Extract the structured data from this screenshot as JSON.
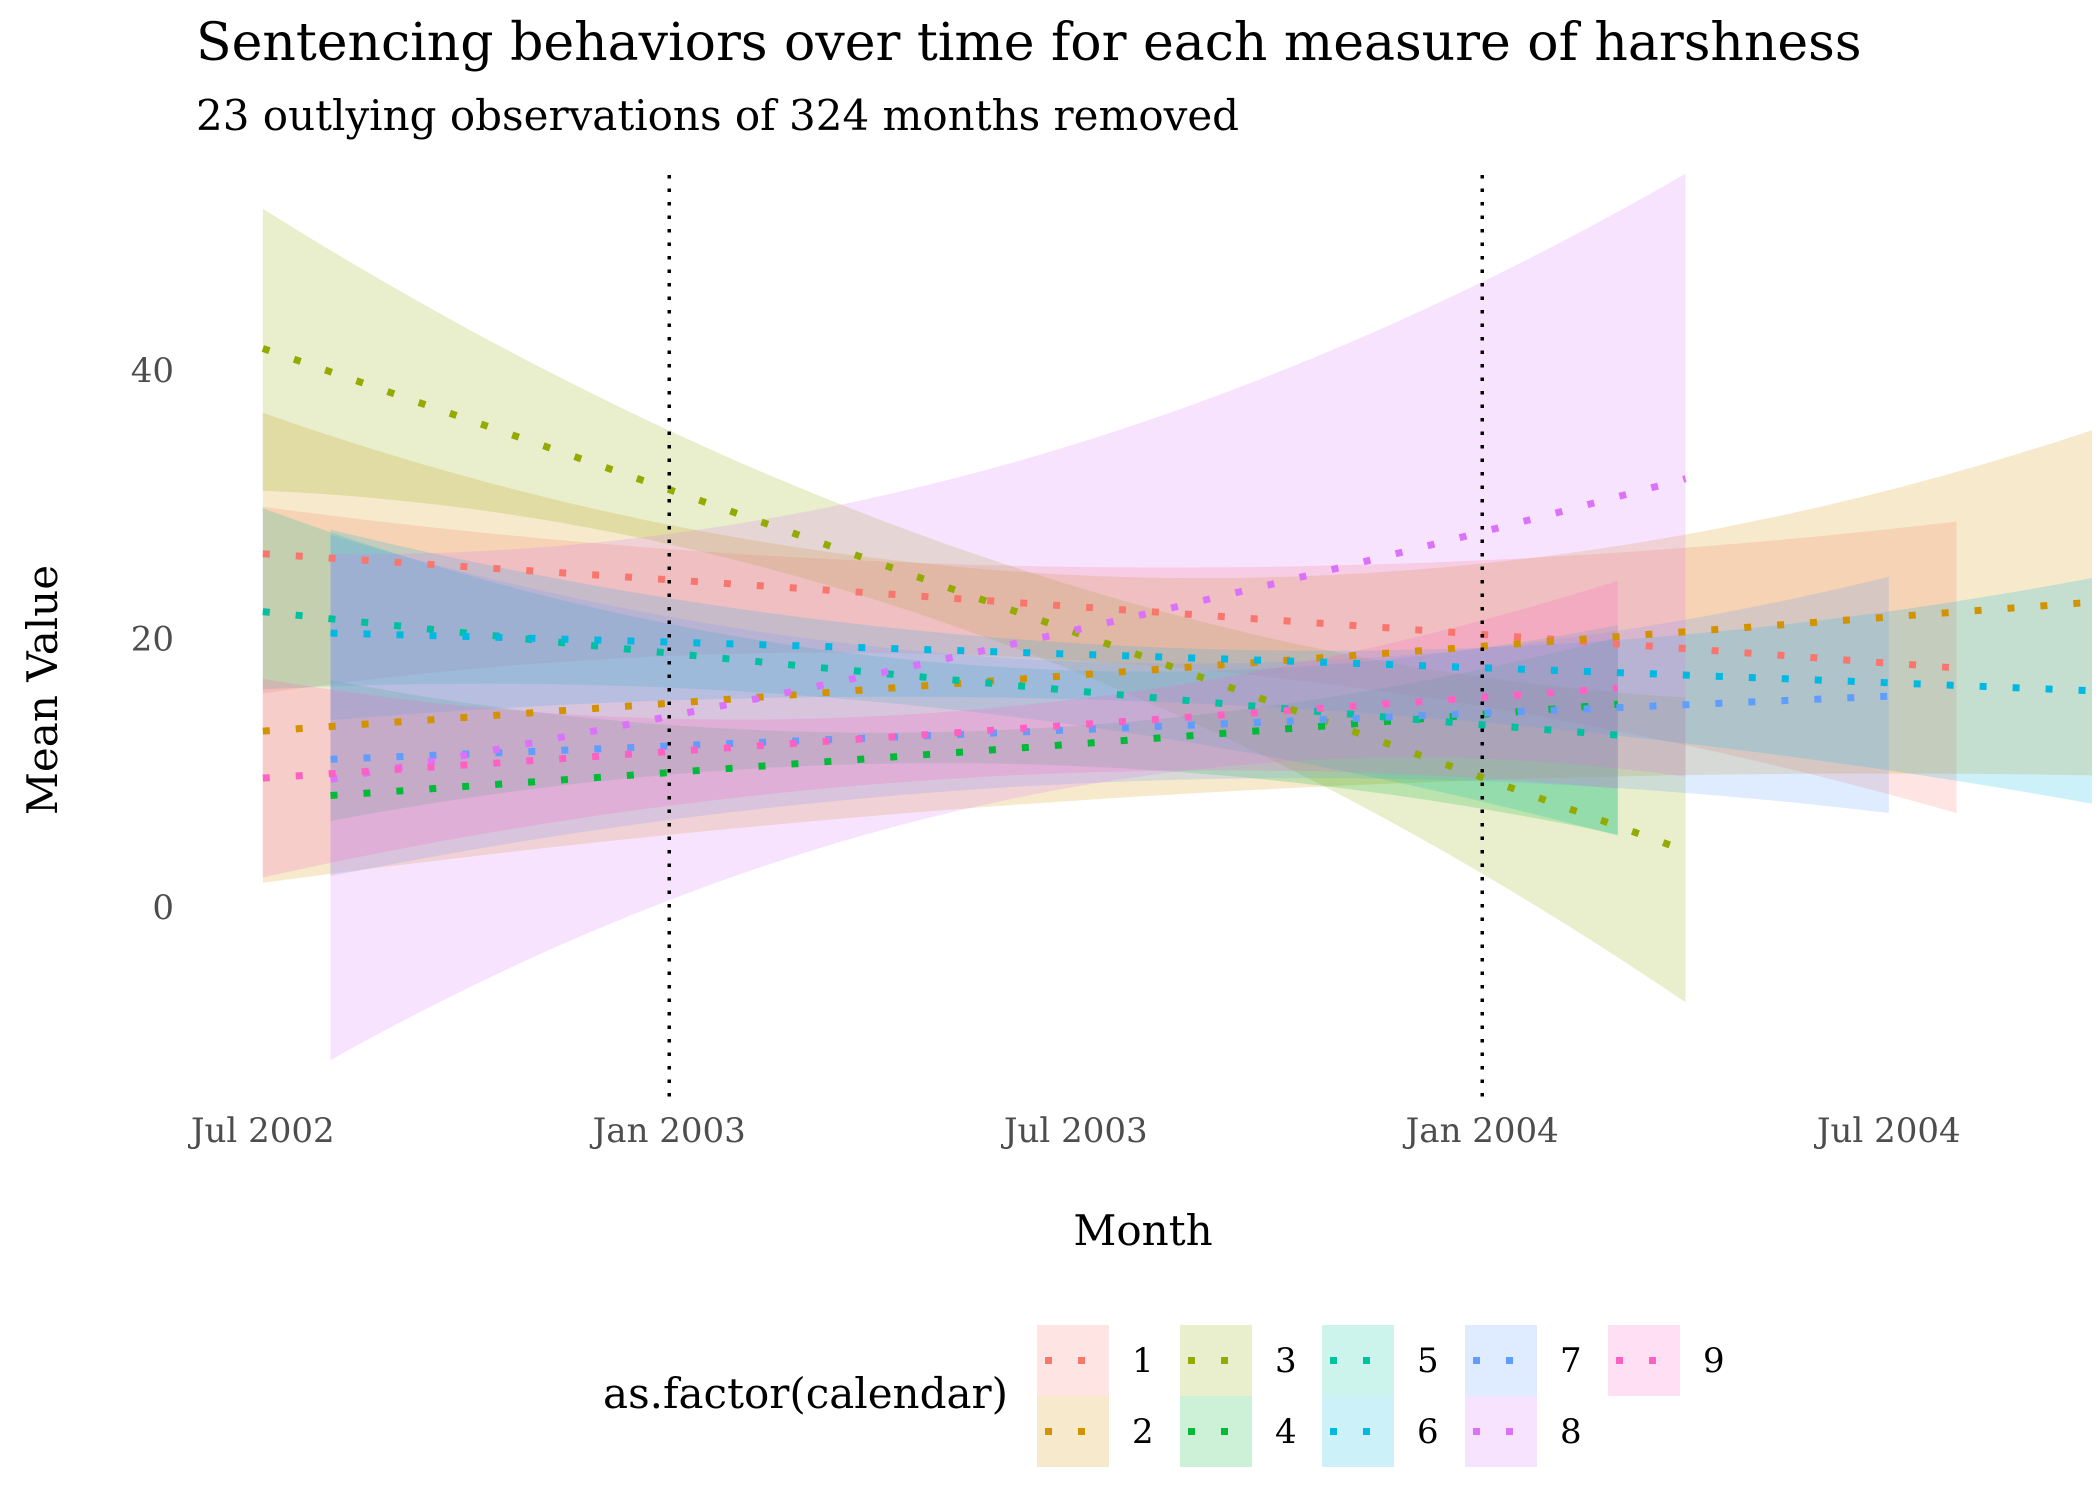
{
  "chart_data": {
    "type": "line",
    "title": "Sentencing behaviors over time for each measure of harshness",
    "subtitle": "23 outlying observations of 324 months removed",
    "xlabel": "Month",
    "ylabel": "Mean Value",
    "x_tick_labels": [
      "Jul 2002",
      "Jan 2003",
      "Jul 2003",
      "Jan 2004",
      "Jul 2004"
    ],
    "x_tick_values": [
      "2002-07",
      "2003-01",
      "2003-07",
      "2004-01",
      "2004-07"
    ],
    "y_ticks": [
      0,
      20,
      40
    ],
    "ylim": [
      -14,
      56
    ],
    "xlim": [
      "2002-06",
      "2004-10"
    ],
    "grid": false,
    "line_style": "dotted",
    "ribbons": true,
    "vlines": [
      "2003-01",
      "2004-01"
    ],
    "legend": {
      "title": "as.factor(calendar)",
      "position": "bottom"
    },
    "series": [
      {
        "name": "1",
        "color": "#F8766D",
        "x_start": "2002-07",
        "x_end": "2004-08",
        "curve": [
          [
            0,
            26.3
          ],
          [
            0.5,
            22.2
          ],
          [
            1,
            17.8
          ]
        ],
        "band": [
          [
            0,
            29.8,
            15.9
          ],
          [
            0.5,
            25.3,
            18.2
          ],
          [
            1,
            28.7,
            7.0
          ]
        ]
      },
      {
        "name": "2",
        "color": "#D39200",
        "x_start": "2002-07",
        "x_end": "2004-10",
        "curve": [
          [
            0,
            13.1
          ],
          [
            0.5,
            17.8
          ],
          [
            1,
            22.7
          ]
        ],
        "band": [
          [
            0,
            36.8,
            1.8
          ],
          [
            0.5,
            24.5,
            8.4
          ],
          [
            1,
            35.5,
            9.8
          ]
        ]
      },
      {
        "name": "3",
        "color": "#93AA00",
        "x_start": "2002-07",
        "x_end": "2004-04",
        "curve": [
          [
            0,
            41.6
          ],
          [
            0.5,
            23.1
          ],
          [
            1,
            4.2
          ]
        ],
        "band": [
          [
            0,
            52.0,
            31.0
          ],
          [
            0.5,
            26.3,
            20.4
          ],
          [
            1,
            15.6,
            -7.1
          ]
        ]
      },
      {
        "name": "4",
        "color": "#00BA38",
        "x_start": "2002-08",
        "x_end": "2004-03",
        "curve": [
          [
            0,
            8.3
          ],
          [
            0.5,
            11.6
          ],
          [
            1,
            15.1
          ]
        ],
        "band": [
          [
            0,
            16.9,
            6.4
          ],
          [
            0.5,
            13.1,
            10.7
          ],
          [
            1,
            20.1,
            5.4
          ]
        ]
      },
      {
        "name": "5",
        "color": "#00C19F",
        "x_start": "2002-07",
        "x_end": "2004-03",
        "curve": [
          [
            0,
            22.0
          ],
          [
            0.5,
            17.0
          ],
          [
            1,
            12.8
          ]
        ],
        "band": [
          [
            0,
            29.7,
            16.2
          ],
          [
            0.5,
            18.2,
            14.8
          ],
          [
            1,
            21.0,
            5.3
          ]
        ]
      },
      {
        "name": "6",
        "color": "#00B9E3",
        "x_start": "2002-08",
        "x_end": "2004-10",
        "curve": [
          [
            0,
            20.4
          ],
          [
            0.5,
            18.5
          ],
          [
            1,
            16.1
          ]
        ],
        "band": [
          [
            0,
            28.1,
            13.9
          ],
          [
            0.5,
            19.2,
            15.1
          ],
          [
            1,
            24.5,
            7.7
          ]
        ]
      },
      {
        "name": "7",
        "color": "#619CFF",
        "x_start": "2002-08",
        "x_end": "2004-07",
        "curve": [
          [
            0,
            11.0
          ],
          [
            0.5,
            13.3
          ],
          [
            1,
            15.7
          ]
        ],
        "band": [
          [
            0,
            27.7,
            2.3
          ],
          [
            0.5,
            18.2,
            9.3
          ],
          [
            1,
            24.6,
            7.0
          ]
        ]
      },
      {
        "name": "8",
        "color": "#DB72FB",
        "x_start": "2002-08",
        "x_end": "2004-04",
        "curve": [
          [
            0,
            9.5
          ],
          [
            0.5,
            19.5
          ],
          [
            1,
            31.9
          ]
        ],
        "band": [
          [
            0,
            26.3,
            -11.4
          ],
          [
            0.5,
            33.0,
            8.0
          ],
          [
            1,
            54.6,
            9.7
          ]
        ]
      },
      {
        "name": "9",
        "color": "#FF61C3",
        "x_start": "2002-07",
        "x_end": "2004-03",
        "curve": [
          [
            0,
            9.6
          ],
          [
            0.5,
            12.9
          ],
          [
            1,
            16.3
          ]
        ],
        "band": [
          [
            0,
            17.0,
            2.2
          ],
          [
            0.5,
            14.5,
            9.5
          ],
          [
            1,
            24.3,
            8.8
          ]
        ]
      }
    ]
  }
}
